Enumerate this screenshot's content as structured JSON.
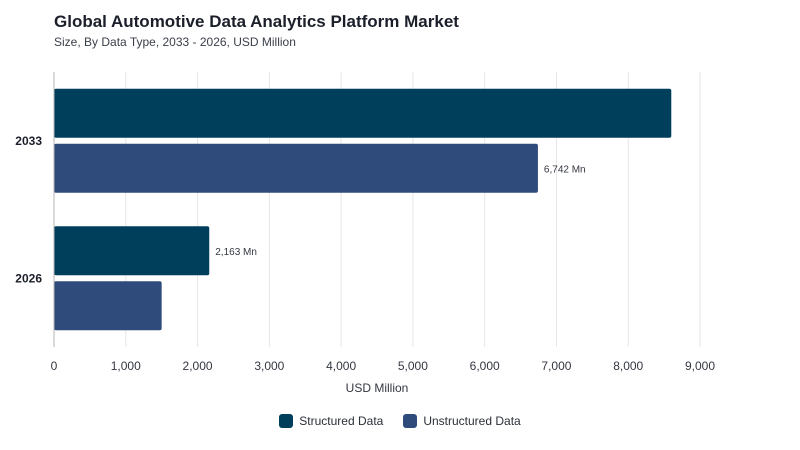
{
  "chart_data": {
    "type": "bar",
    "orientation": "horizontal",
    "title": "Global Automotive Data Analytics Platform Market",
    "subtitle": "Size, By Data Type, 2033 - 2026, USD Million",
    "xlabel": "USD Million",
    "ylabel": "",
    "xlim": [
      0,
      9000
    ],
    "x_ticks": [
      0,
      1000,
      2000,
      3000,
      4000,
      5000,
      6000,
      7000,
      8000,
      9000
    ],
    "x_tick_labels": [
      "0",
      "1,000",
      "2,000",
      "3,000",
      "4,000",
      "5,000",
      "6,000",
      "7,000",
      "8,000",
      "9,000"
    ],
    "categories": [
      "2033",
      "2026"
    ],
    "series": [
      {
        "name": "Structured Data",
        "color": "#003f5c",
        "values": [
          8600,
          2163
        ],
        "data_labels": [
          "",
          "2,163 Mn"
        ]
      },
      {
        "name": "Unstructured Data",
        "color": "#2f4b7c",
        "values": [
          6742,
          1500
        ],
        "data_labels": [
          "6,742 Mn",
          ""
        ]
      }
    ],
    "grid": true,
    "legend_position": "bottom-center"
  }
}
